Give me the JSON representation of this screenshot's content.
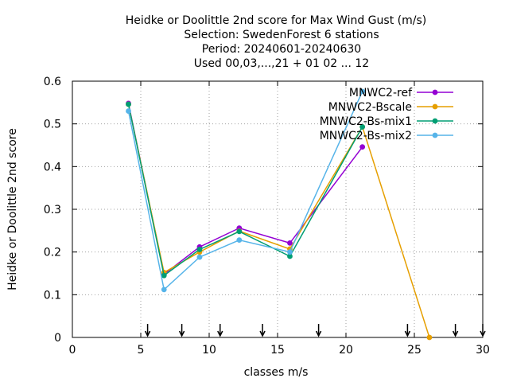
{
  "chart_data": {
    "type": "line",
    "title_lines": [
      "Heidke or Doolittle 2nd score  for Max Wind Gust (m/s)",
      "Selection: SwedenForest      6 stations",
      "Period: 20240601-20240630",
      "Used 00,03,...,21 + 01 02 ... 12"
    ],
    "xlabel": "classes m/s",
    "ylabel": "Heidke or Doolittle 2nd score",
    "xlim": [
      0,
      30
    ],
    "ylim": [
      0,
      0.6
    ],
    "xticks": [
      0,
      5,
      10,
      15,
      20,
      25,
      30
    ],
    "yticks": [
      0,
      0.1,
      0.2,
      0.3,
      0.4,
      0.5,
      0.6
    ],
    "xtick_labels": [
      "0",
      "5",
      "10",
      "15",
      "20",
      "25",
      "30"
    ],
    "ytick_labels": [
      "0",
      "0.1",
      "0.2",
      "0.3",
      "0.4",
      "0.5",
      "0.6"
    ],
    "grid": true,
    "legend_position": "top-right",
    "class_markers": [
      5.5,
      8,
      10.8,
      13.9,
      18,
      24.5,
      28,
      30
    ],
    "series": [
      {
        "name": "MNWC2-ref",
        "color": "#9400d3",
        "points": [
          [
            4.1,
            0.548
          ],
          [
            6.7,
            0.148
          ],
          [
            9.3,
            0.212
          ],
          [
            12.2,
            0.256
          ],
          [
            15.9,
            0.221
          ],
          [
            21.2,
            0.446
          ]
        ]
      },
      {
        "name": "MNWC2-Bscale",
        "color": "#e69f00",
        "points": [
          [
            4.1,
            0.546
          ],
          [
            6.7,
            0.152
          ],
          [
            9.3,
            0.2
          ],
          [
            12.2,
            0.249
          ],
          [
            15.9,
            0.207
          ],
          [
            21.2,
            0.493
          ],
          [
            26.1,
            0.0
          ]
        ]
      },
      {
        "name": "MNWC2-Bs-mix1",
        "color": "#009e73",
        "points": [
          [
            4.1,
            0.546
          ],
          [
            6.7,
            0.145
          ],
          [
            9.3,
            0.206
          ],
          [
            12.2,
            0.248
          ],
          [
            15.9,
            0.19
          ],
          [
            21.2,
            0.493
          ]
        ]
      },
      {
        "name": "MNWC2-Bs-mix2",
        "color": "#56b4e9",
        "points": [
          [
            4.1,
            0.53
          ],
          [
            6.7,
            0.112
          ],
          [
            9.3,
            0.188
          ],
          [
            12.2,
            0.228
          ],
          [
            15.9,
            0.2
          ],
          [
            21.2,
            0.576
          ]
        ]
      }
    ]
  }
}
